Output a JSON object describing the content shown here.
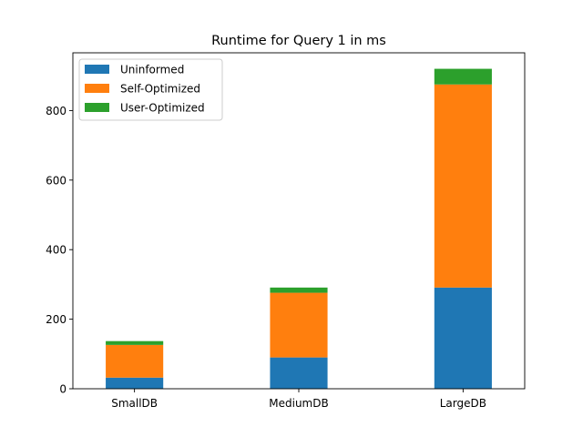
{
  "chart_data": {
    "type": "bar",
    "stacked": true,
    "title": "Runtime for Query 1 in ms",
    "xlabel": "",
    "ylabel": "",
    "categories": [
      "SmallDB",
      "MediumDB",
      "LargeDB"
    ],
    "series": [
      {
        "name": "Uninformed",
        "color": "#1f77b4",
        "values": [
          32,
          90,
          291
        ]
      },
      {
        "name": "Self-Optimized",
        "color": "#ff7f0e",
        "values": [
          94,
          186,
          584
        ]
      },
      {
        "name": "User-Optimized",
        "color": "#2ca02c",
        "values": [
          11,
          15,
          45
        ]
      }
    ],
    "ylim": [
      0,
      966
    ],
    "yticks": [
      0,
      200,
      400,
      600,
      800
    ],
    "grid": false,
    "legend_position": "top-left"
  }
}
